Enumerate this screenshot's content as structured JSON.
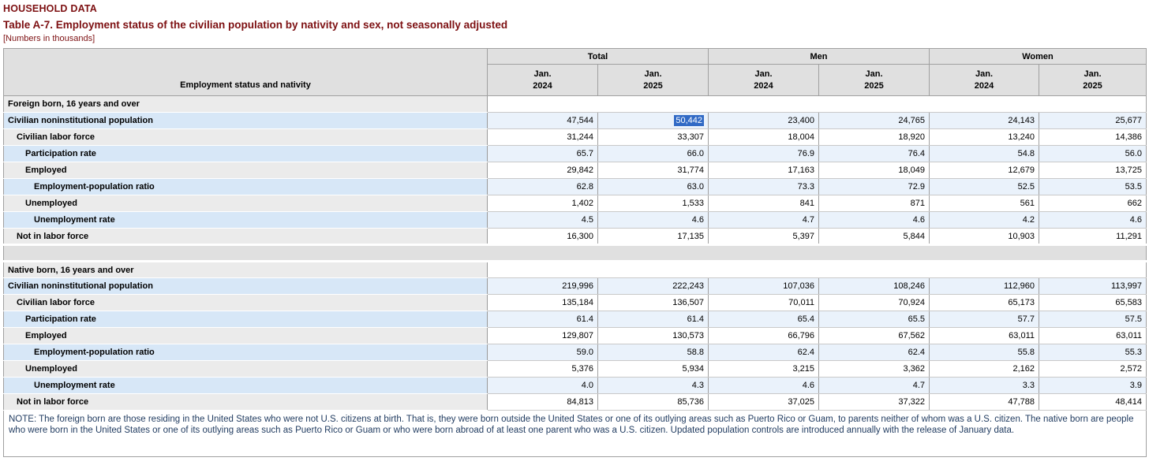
{
  "page": {
    "kicker": "HOUSEHOLD DATA",
    "title": "Table A-7. Employment status of the civilian population by nativity and sex, not seasonally adjusted",
    "units_note": "[Numbers in thousands]"
  },
  "colors": {
    "heading": "#7d1012",
    "note_text": "#1f3a5f",
    "selection_bg": "#316ac5",
    "header_bg": "#e0e0e0",
    "row_blue_label": "#d7e7f7",
    "row_blue_data": "#eaf2fb",
    "row_gray_label": "#ebebeb"
  },
  "table": {
    "stub_header": "Employment status and nativity",
    "groups": [
      "Total",
      "Men",
      "Women"
    ],
    "columns": [
      {
        "month": "Jan.",
        "year": "2024"
      },
      {
        "month": "Jan.",
        "year": "2025"
      },
      {
        "month": "Jan.",
        "year": "2024"
      },
      {
        "month": "Jan.",
        "year": "2025"
      },
      {
        "month": "Jan.",
        "year": "2024"
      },
      {
        "month": "Jan.",
        "year": "2025"
      }
    ],
    "sections": [
      {
        "title": "Foreign born, 16 years and over",
        "rows": [
          {
            "label": "Civilian noninstitutional population",
            "indent": 0,
            "selected_col": 1,
            "values": [
              "47,544",
              "50,442",
              "23,400",
              "24,765",
              "24,143",
              "25,677"
            ]
          },
          {
            "label": "Civilian labor force",
            "indent": 1,
            "values": [
              "31,244",
              "33,307",
              "18,004",
              "18,920",
              "13,240",
              "14,386"
            ]
          },
          {
            "label": "Participation rate",
            "indent": 2,
            "values": [
              "65.7",
              "66.0",
              "76.9",
              "76.4",
              "54.8",
              "56.0"
            ]
          },
          {
            "label": "Employed",
            "indent": 2,
            "values": [
              "29,842",
              "31,774",
              "17,163",
              "18,049",
              "12,679",
              "13,725"
            ]
          },
          {
            "label": "Employment-population ratio",
            "indent": 3,
            "values": [
              "62.8",
              "63.0",
              "73.3",
              "72.9",
              "52.5",
              "53.5"
            ]
          },
          {
            "label": "Unemployed",
            "indent": 2,
            "values": [
              "1,402",
              "1,533",
              "841",
              "871",
              "561",
              "662"
            ]
          },
          {
            "label": "Unemployment rate",
            "indent": 3,
            "values": [
              "4.5",
              "4.6",
              "4.7",
              "4.6",
              "4.2",
              "4.6"
            ]
          },
          {
            "label": "Not in labor force",
            "indent": 1,
            "values": [
              "16,300",
              "17,135",
              "5,397",
              "5,844",
              "10,903",
              "11,291"
            ]
          }
        ]
      },
      {
        "title": "Native born, 16 years and over",
        "rows": [
          {
            "label": "Civilian noninstitutional population",
            "indent": 0,
            "values": [
              "219,996",
              "222,243",
              "107,036",
              "108,246",
              "112,960",
              "113,997"
            ]
          },
          {
            "label": "Civilian labor force",
            "indent": 1,
            "values": [
              "135,184",
              "136,507",
              "70,011",
              "70,924",
              "65,173",
              "65,583"
            ]
          },
          {
            "label": "Participation rate",
            "indent": 2,
            "values": [
              "61.4",
              "61.4",
              "65.4",
              "65.5",
              "57.7",
              "57.5"
            ]
          },
          {
            "label": "Employed",
            "indent": 2,
            "values": [
              "129,807",
              "130,573",
              "66,796",
              "67,562",
              "63,011",
              "63,011"
            ]
          },
          {
            "label": "Employment-population ratio",
            "indent": 3,
            "values": [
              "59.0",
              "58.8",
              "62.4",
              "62.4",
              "55.8",
              "55.3"
            ]
          },
          {
            "label": "Unemployed",
            "indent": 2,
            "values": [
              "5,376",
              "5,934",
              "3,215",
              "3,362",
              "2,162",
              "2,572"
            ]
          },
          {
            "label": "Unemployment rate",
            "indent": 3,
            "values": [
              "4.0",
              "4.3",
              "4.6",
              "4.7",
              "3.3",
              "3.9"
            ]
          },
          {
            "label": "Not in labor force",
            "indent": 1,
            "values": [
              "84,813",
              "85,736",
              "37,025",
              "37,322",
              "47,788",
              "48,414"
            ]
          }
        ]
      }
    ]
  },
  "note": "NOTE: The foreign born are those residing in the United States who were not U.S. citizens at birth. That is, they were born outside the United States or one of its outlying areas such as Puerto Rico or Guam, to parents neither of whom was a U.S. citizen. The native born are people who were born in the United States or one of its outlying areas such as Puerto Rico or Guam or who were born abroad of at least one parent who was a U.S. citizen. Updated population controls are introduced annually with the release of January data."
}
